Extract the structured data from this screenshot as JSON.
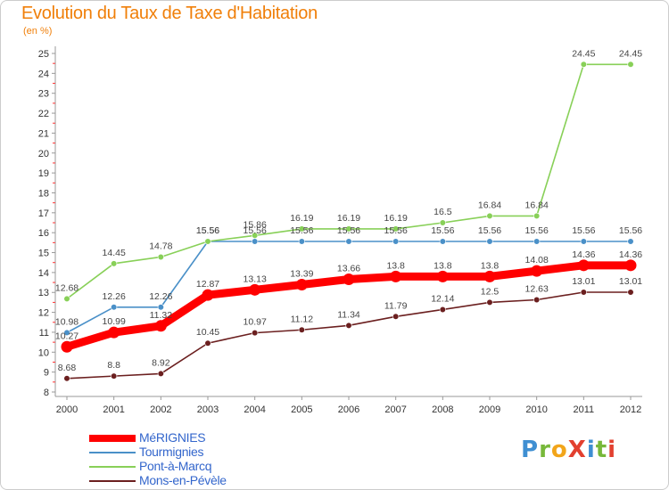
{
  "title": "Evolution du Taux de Taxe d'Habitation",
  "subtitle": "(en %)",
  "logo_text": "ProXiti",
  "chart_data": {
    "type": "line",
    "title": "Evolution du Taux de Taxe d'Habitation",
    "subtitle": "(en %)",
    "x": [
      2000,
      2001,
      2002,
      2003,
      2004,
      2005,
      2006,
      2007,
      2008,
      2009,
      2010,
      2011,
      2012
    ],
    "ylim": [
      8,
      25
    ],
    "yticks": [
      8,
      9,
      10,
      11,
      12,
      13,
      14,
      15,
      16,
      17,
      18,
      19,
      20,
      21,
      22,
      23,
      24,
      25
    ],
    "grid": false,
    "legend_position": "bottom-left",
    "series": [
      {
        "name": "MéRIGNIES",
        "color": "#ff0000",
        "values": [
          10.27,
          10.99,
          11.32,
          12.87,
          13.13,
          13.39,
          13.66,
          13.8,
          13.8,
          13.8,
          14.08,
          14.36,
          14.36
        ]
      },
      {
        "name": "Tourmignies",
        "color": "#4a90c8",
        "values": [
          10.98,
          12.26,
          12.26,
          15.56,
          15.56,
          15.56,
          15.56,
          15.56,
          15.56,
          15.56,
          15.56,
          15.56,
          15.56
        ]
      },
      {
        "name": "Pont-à-Marcq",
        "color": "#88d058",
        "values": [
          12.68,
          14.45,
          14.78,
          15.56,
          15.86,
          16.19,
          16.19,
          16.19,
          16.5,
          16.84,
          16.84,
          24.45,
          24.45
        ]
      },
      {
        "name": "Mons-en-Pévèle",
        "color": "#6b1f1f",
        "values": [
          8.68,
          8.8,
          8.92,
          10.45,
          10.97,
          11.12,
          11.34,
          11.79,
          12.14,
          12.5,
          12.63,
          13.01,
          13.01
        ]
      }
    ],
    "data_labels": {
      "MéRIGNIES": [
        "10.27",
        "10.99",
        "11.32",
        "12.87",
        "13.13",
        "13.39",
        "13.66",
        "13.8",
        "13.8",
        "13.8",
        "14.08",
        "14.36",
        "14.36"
      ],
      "Tourmignies": [
        "10.98",
        "12.26",
        "12.26",
        "15.56",
        "15.56",
        "15.56",
        "15.56",
        "15.56",
        "15.56",
        "15.56",
        "15.56",
        "15.56",
        "15.56"
      ],
      "Pont-à-Marcq": [
        "12.68",
        "14.45",
        "14.78",
        "15.56",
        "15.86",
        "16.19",
        "16.19",
        "16.19",
        "16.5",
        "16.84",
        "16.84",
        "24.45",
        "24.45"
      ],
      "Mons-en-Pévèle": [
        "8.68",
        "8.8",
        "8.92",
        "10.45",
        "10.97",
        "11.12",
        "11.34",
        "11.79",
        "12.14",
        "12.5",
        "12.63",
        "13.01",
        "13.01"
      ]
    }
  }
}
